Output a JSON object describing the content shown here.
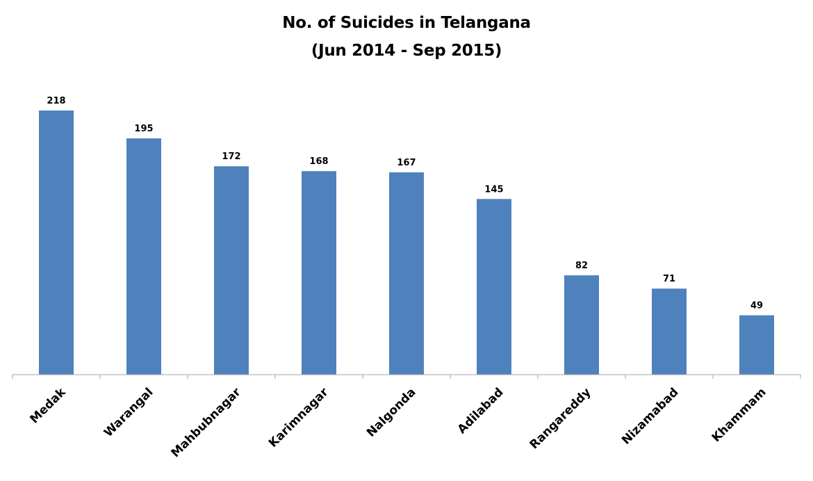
{
  "chart_data": {
    "type": "bar",
    "title_lines": [
      "No. of Suicides in Telangana",
      "(Jun 2014 - Sep 2015)"
    ],
    "categories": [
      "Medak",
      "Warangal",
      "Mahbubnagar",
      "Karimnagar",
      "Nalgonda",
      "Adilabad",
      "Rangareddy",
      "Nizamabad",
      "Khammam"
    ],
    "values": [
      218,
      195,
      172,
      168,
      167,
      145,
      82,
      71,
      49
    ],
    "value_labels": [
      "218",
      "195",
      "172",
      "168",
      "167",
      "145",
      "82",
      "71",
      "49"
    ],
    "xlabel": "",
    "ylabel": "",
    "ylim": [
      0,
      250
    ],
    "grid": false,
    "legend": "none",
    "bar_color": "#4f81bd",
    "axis_color": "#a6a6a6"
  }
}
